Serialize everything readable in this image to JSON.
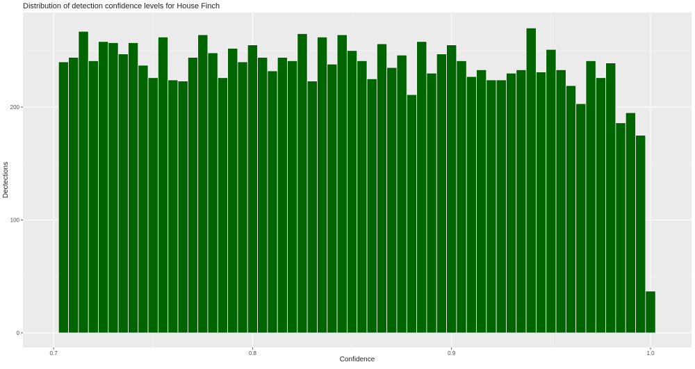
{
  "chart_data": {
    "type": "histogram",
    "title": "Distribution of detection confidence levels for House Finch",
    "xlabel": "Confidence",
    "ylabel": "Dectections",
    "color": "#006400",
    "bins": [
      0.7025,
      0.7075,
      0.7125,
      0.7175,
      0.7225,
      0.7275,
      0.7325,
      0.7375,
      0.7425,
      0.7475,
      0.7525,
      0.7575,
      0.7625,
      0.7675,
      0.7725,
      0.7775,
      0.7825,
      0.7875,
      0.7925,
      0.7975,
      0.8025,
      0.8075,
      0.8125,
      0.8175,
      0.8225,
      0.8275,
      0.8325,
      0.8375,
      0.8425,
      0.8475,
      0.8525,
      0.8575,
      0.8625,
      0.8675,
      0.8725,
      0.8775,
      0.8825,
      0.8875,
      0.8925,
      0.8975,
      0.9025,
      0.9075,
      0.9125,
      0.9175,
      0.9225,
      0.9275,
      0.9325,
      0.9375,
      0.9425,
      0.9475,
      0.9525,
      0.9575,
      0.9625,
      0.9675,
      0.9725,
      0.9775,
      0.9825,
      0.9875,
      0.9925,
      0.9975,
      1.0025
    ],
    "values": [
      240,
      244,
      267,
      241,
      258,
      257,
      247,
      257,
      237,
      226,
      262,
      224,
      223,
      244,
      264,
      248,
      226,
      252,
      240,
      255,
      244,
      232,
      244,
      241,
      265,
      223,
      262,
      238,
      264,
      250,
      241,
      225,
      256,
      235,
      246,
      211,
      258,
      230,
      247,
      255,
      241,
      227,
      233,
      224,
      224,
      230,
      233,
      270,
      231,
      251,
      233,
      219,
      203,
      241,
      226,
      239,
      186,
      195,
      175,
      37
    ],
    "xlim": [
      0.6846,
      1.0206
    ],
    "ylim": [
      -12.9,
      283.7
    ],
    "xticks": [
      0.7,
      0.8,
      0.9,
      {
        "value": 1.0,
        "label": "1.0"
      }
    ],
    "yticks": [
      0,
      100,
      200
    ],
    "minor_xticks": [
      0.75,
      0.85,
      0.95
    ],
    "minor_yticks": [
      50,
      150,
      250
    ],
    "grid": true
  }
}
